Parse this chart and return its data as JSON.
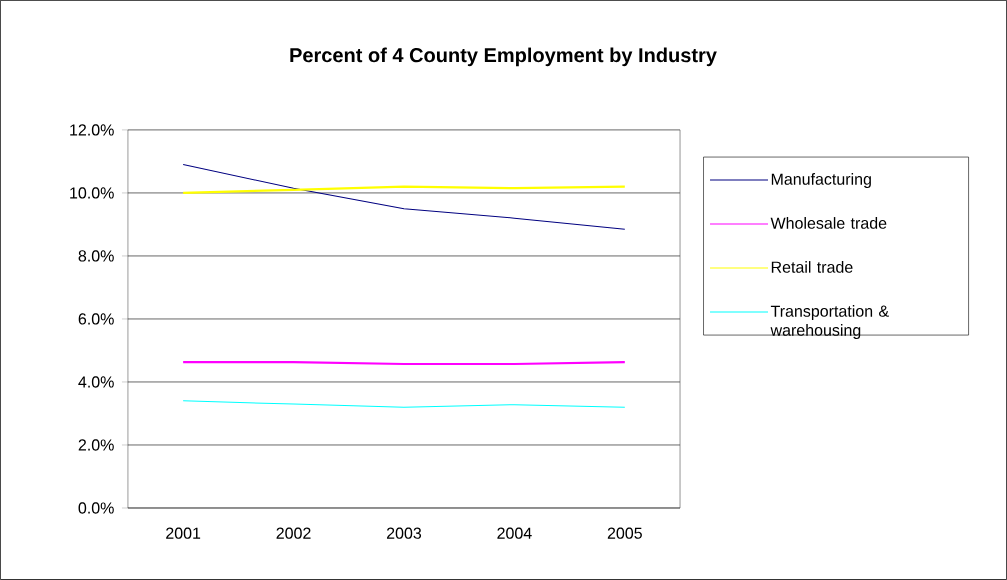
{
  "chart_data": {
    "type": "line",
    "title": "Percent of 4 County Employment by Industry",
    "categories": [
      "2001",
      "2002",
      "2003",
      "2004",
      "2005"
    ],
    "series": [
      {
        "name": "Manufacturing",
        "color": "#000080",
        "values": [
          10.9,
          10.15,
          9.5,
          9.2,
          8.85
        ]
      },
      {
        "name": "Wholesale trade",
        "color": "#ff00ff",
        "values": [
          4.63,
          4.63,
          4.57,
          4.57,
          4.63
        ]
      },
      {
        "name": "Retail trade",
        "color": "#ffff00",
        "values": [
          10.0,
          10.1,
          10.2,
          10.15,
          10.2
        ]
      },
      {
        "name": "Transportation & warehousing",
        "color": "#00ffff",
        "values": [
          3.4,
          3.3,
          3.2,
          3.28,
          3.2
        ]
      }
    ],
    "ylim": [
      0,
      12
    ],
    "yticks": [
      {
        "value": 0,
        "label": "0.0%"
      },
      {
        "value": 2,
        "label": "2.0%"
      },
      {
        "value": 4,
        "label": "4.0%"
      },
      {
        "value": 6,
        "label": "6.0%"
      },
      {
        "value": 8,
        "label": "8.0%"
      },
      {
        "value": 10,
        "label": "10.0%"
      },
      {
        "value": 12,
        "label": "12.0%"
      }
    ],
    "grid": "y",
    "legend": "right",
    "marker": "none",
    "line_style": "solid"
  }
}
